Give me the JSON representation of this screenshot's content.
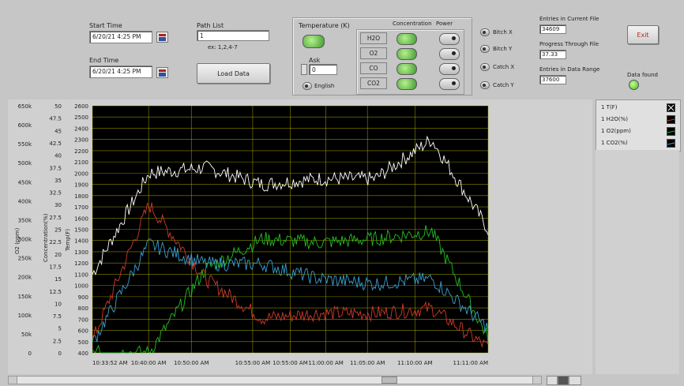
{
  "controls": {
    "start_time_label": "Start Time",
    "start_time_value": "6/20/21 4:25 PM",
    "end_time_label": "End Time",
    "end_time_value": "6/20/21 4:25 PM",
    "path_list_label": "Path List",
    "path_list_value": "1",
    "path_list_hint": "ex: 1,2,4-7",
    "load_data_label": "Load Data",
    "temperature_label": "Temperature (K)",
    "ask_label": "Ask",
    "ask_value": "0",
    "english_label": "English"
  },
  "channels": {
    "concentration_header": "Concentration",
    "power_header": "Power",
    "rows": [
      "H2O",
      "O2",
      "CO",
      "CO2"
    ]
  },
  "radios": [
    "Bitch X",
    "Bitch Y",
    "Catch X",
    "Catch Y"
  ],
  "status": {
    "entries_label": "Entries in Current File",
    "entries_value": "34609",
    "progress_label": "Progress Through File",
    "progress_value": "37.33",
    "entries_data_label": "Entries in Data Range",
    "entries_data_value": "37600",
    "exit_label": "Exit",
    "data_found_label": "Data found"
  },
  "chart": {
    "axis1_label": "O2 (ppm)",
    "axis1_ticks": [
      "650k",
      "600k",
      "550k",
      "500k",
      "450k",
      "400k",
      "350k",
      "300k",
      "250k",
      "200k",
      "150k",
      "100k",
      "50k",
      "0"
    ],
    "axis2_label": "Concentration(%)",
    "axis2_ticks": [
      "50",
      "47.5",
      "45",
      "42.5",
      "40",
      "37.5",
      "35",
      "32.5",
      "30",
      "27.5",
      "25",
      "22.5",
      "20",
      "17.5",
      "15",
      "12.5",
      "10",
      "7.5",
      "5",
      "2.5",
      "0"
    ],
    "axis3_label": "Temp(F)",
    "axis3_ticks": [
      "2600",
      "2500",
      "2400",
      "2300",
      "2200",
      "2100",
      "2000",
      "1900",
      "1800",
      "1700",
      "1600",
      "1500",
      "1400",
      "1300",
      "1200",
      "1100",
      "1000",
      "900",
      "800",
      "700",
      "600",
      "500",
      "400"
    ],
    "x_ticks": [
      "10:33:52 AM",
      "10:40:00 AM",
      "10:50:00 AM",
      "10:55:00 AM",
      "10:55:00 AM",
      "11:00:00 AM",
      "11:05:00 AM",
      "11:10:00 AM",
      "11:11:00 AM"
    ]
  },
  "legend": [
    {
      "label": "1 T(F)",
      "color": "#ffffff"
    },
    {
      "label": "1 H2O(%)",
      "color": "#d03a2a"
    },
    {
      "label": "1 O2(ppm)",
      "color": "#22c022"
    },
    {
      "label": "1 CO2(%)",
      "color": "#3aa0d0"
    }
  ],
  "colors": {
    "plot_bg": "#000000",
    "grid": "#b8b800",
    "led": "#55dd33"
  },
  "chart_data": {
    "type": "line",
    "x": [
      "10:33:52 AM",
      "10:40:00 AM",
      "10:50:00 AM",
      "10:55:00 AM",
      "11:00:00 AM",
      "11:05:00 AM",
      "11:10:00 AM",
      "11:11:00 AM"
    ],
    "series": [
      {
        "name": "1 T(F)",
        "axis": "Temp(F)",
        "values": [
          1100,
          2000,
          2050,
          1900,
          1950,
          1950,
          2300,
          1500
        ]
      },
      {
        "name": "1 H2O(%)",
        "axis": "Concentration(%)",
        "values": [
          2.5,
          30,
          15,
          7,
          8,
          8,
          9,
          1
        ]
      },
      {
        "name": "1 O2(ppm)",
        "axis": "O2 (ppm)",
        "values": [
          0,
          0,
          220000,
          300000,
          290000,
          300000,
          320000,
          40000
        ]
      },
      {
        "name": "1 CO2(%)",
        "axis": "Concentration(%)",
        "values": [
          2,
          22,
          18,
          18,
          15,
          14,
          15,
          5
        ]
      }
    ],
    "ylim_temp": [
      400,
      2600
    ],
    "ylim_conc": [
      0,
      50
    ],
    "ylim_o2": [
      0,
      650000
    ],
    "grid": true
  }
}
